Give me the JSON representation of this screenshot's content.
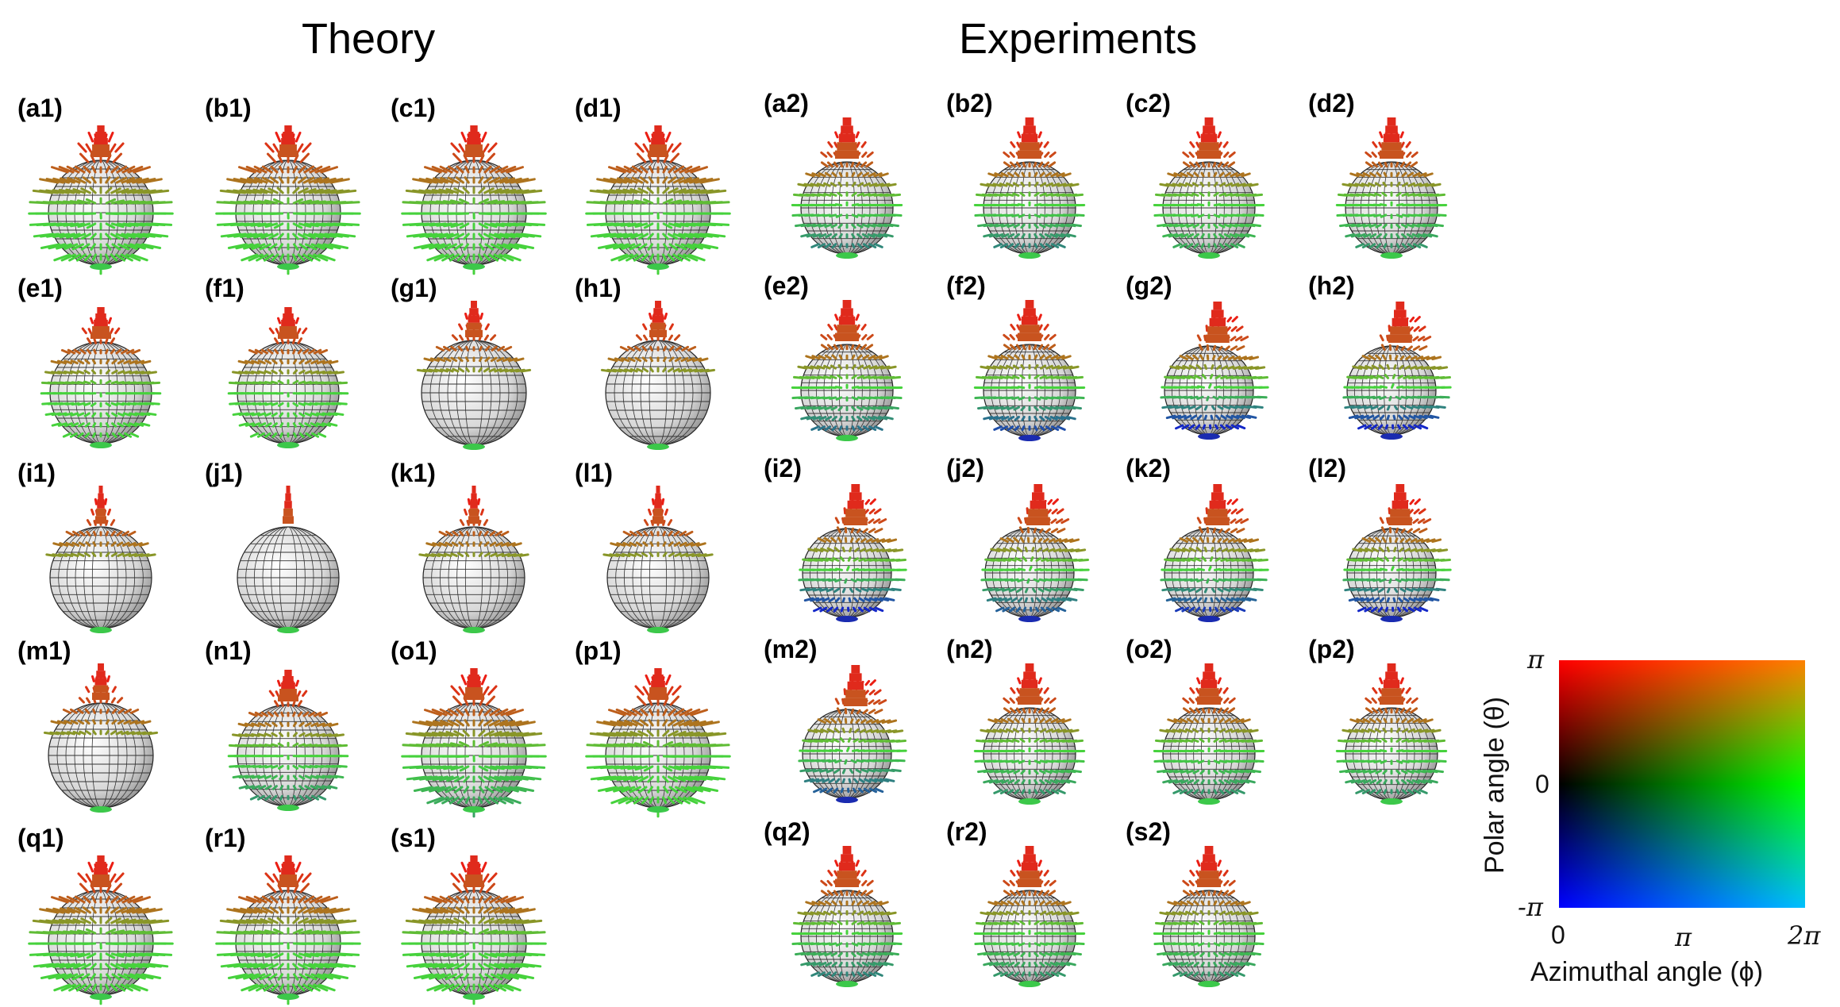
{
  "headers": {
    "theory": "Theory",
    "experiments": "Experiments"
  },
  "theory_panels": [
    {
      "label": "(a1)",
      "shape": "full",
      "arrows": "full",
      "blue": 0
    },
    {
      "label": "(b1)",
      "shape": "full",
      "arrows": "full",
      "blue": 0
    },
    {
      "label": "(c1)",
      "shape": "full",
      "arrows": "full",
      "blue": 0
    },
    {
      "label": "(d1)",
      "shape": "full",
      "arrows": "full",
      "blue": 0
    },
    {
      "label": "(e1)",
      "shape": "round",
      "arrows": "mid",
      "blue": 0
    },
    {
      "label": "(f1)",
      "shape": "round",
      "arrows": "mid",
      "blue": 0
    },
    {
      "label": "(g1)",
      "shape": "cone",
      "arrows": "top",
      "blue": 0
    },
    {
      "label": "(h1)",
      "shape": "cone",
      "arrows": "top",
      "blue": 0
    },
    {
      "label": "(i1)",
      "shape": "spike",
      "arrows": "top",
      "blue": 0
    },
    {
      "label": "(j1)",
      "shape": "spike",
      "arrows": "none",
      "blue": 0
    },
    {
      "label": "(k1)",
      "shape": "spike",
      "arrows": "top",
      "blue": 0
    },
    {
      "label": "(l1)",
      "shape": "spike",
      "arrows": "top",
      "blue": 0
    },
    {
      "label": "(m1)",
      "shape": "cone",
      "arrows": "top",
      "blue": 0.2
    },
    {
      "label": "(n1)",
      "shape": "round",
      "arrows": "mid",
      "blue": 0.3
    },
    {
      "label": "(o1)",
      "shape": "full",
      "arrows": "full",
      "blue": 0.2
    },
    {
      "label": "(p1)",
      "shape": "full",
      "arrows": "full",
      "blue": 0
    },
    {
      "label": "(q1)",
      "shape": "full",
      "arrows": "full",
      "blue": 0
    },
    {
      "label": "(r1)",
      "shape": "full",
      "arrows": "full",
      "blue": 0
    },
    {
      "label": "(s1)",
      "shape": "full",
      "arrows": "full",
      "blue": 0
    }
  ],
  "experiment_panels": [
    {
      "label": "(a2)",
      "shape": "egg",
      "arrows": "mid",
      "blue": 0.4
    },
    {
      "label": "(b2)",
      "shape": "egg",
      "arrows": "mid",
      "blue": 0.4
    },
    {
      "label": "(c2)",
      "shape": "egg",
      "arrows": "mid",
      "blue": 0.2
    },
    {
      "label": "(d2)",
      "shape": "egg",
      "arrows": "mid",
      "blue": 0.3
    },
    {
      "label": "(e2)",
      "shape": "egg",
      "arrows": "mid",
      "blue": 0.5
    },
    {
      "label": "(f2)",
      "shape": "egg",
      "arrows": "mid",
      "blue": 0.7
    },
    {
      "label": "(g2)",
      "shape": "lean",
      "arrows": "mid",
      "blue": 0.9
    },
    {
      "label": "(h2)",
      "shape": "lean",
      "arrows": "mid",
      "blue": 0.9
    },
    {
      "label": "(i2)",
      "shape": "lean",
      "arrows": "mid",
      "blue": 0.9
    },
    {
      "label": "(j2)",
      "shape": "lean",
      "arrows": "mid",
      "blue": 0.6
    },
    {
      "label": "(k2)",
      "shape": "lean",
      "arrows": "mid",
      "blue": 0.8
    },
    {
      "label": "(l2)",
      "shape": "lean",
      "arrows": "mid",
      "blue": 0.9
    },
    {
      "label": "(m2)",
      "shape": "lean",
      "arrows": "mid",
      "blue": 0.6
    },
    {
      "label": "(n2)",
      "shape": "egg",
      "arrows": "mid",
      "blue": 0.3
    },
    {
      "label": "(o2)",
      "shape": "egg",
      "arrows": "mid",
      "blue": 0.3
    },
    {
      "label": "(p2)",
      "shape": "egg",
      "arrows": "mid",
      "blue": 0.3
    },
    {
      "label": "(q2)",
      "shape": "egg",
      "arrows": "mid",
      "blue": 0.4
    },
    {
      "label": "(r2)",
      "shape": "egg",
      "arrows": "mid",
      "blue": 0.3
    },
    {
      "label": "(s2)",
      "shape": "egg",
      "arrows": "mid",
      "blue": 0.3
    }
  ],
  "color_key": {
    "y_label": "Polar angle (θ)",
    "x_label": "Azimuthal angle (ϕ)",
    "y_ticks": [
      "π",
      "0",
      "-π"
    ],
    "x_ticks": [
      "0",
      "π",
      "2π"
    ],
    "colors": {
      "top_left": "#ff0000",
      "top_right": "#ff8000",
      "mid_left": "#000000",
      "mid_right": "#00ff00",
      "bottom_left": "#0000ff",
      "bottom_right": "#00c0ff"
    }
  }
}
